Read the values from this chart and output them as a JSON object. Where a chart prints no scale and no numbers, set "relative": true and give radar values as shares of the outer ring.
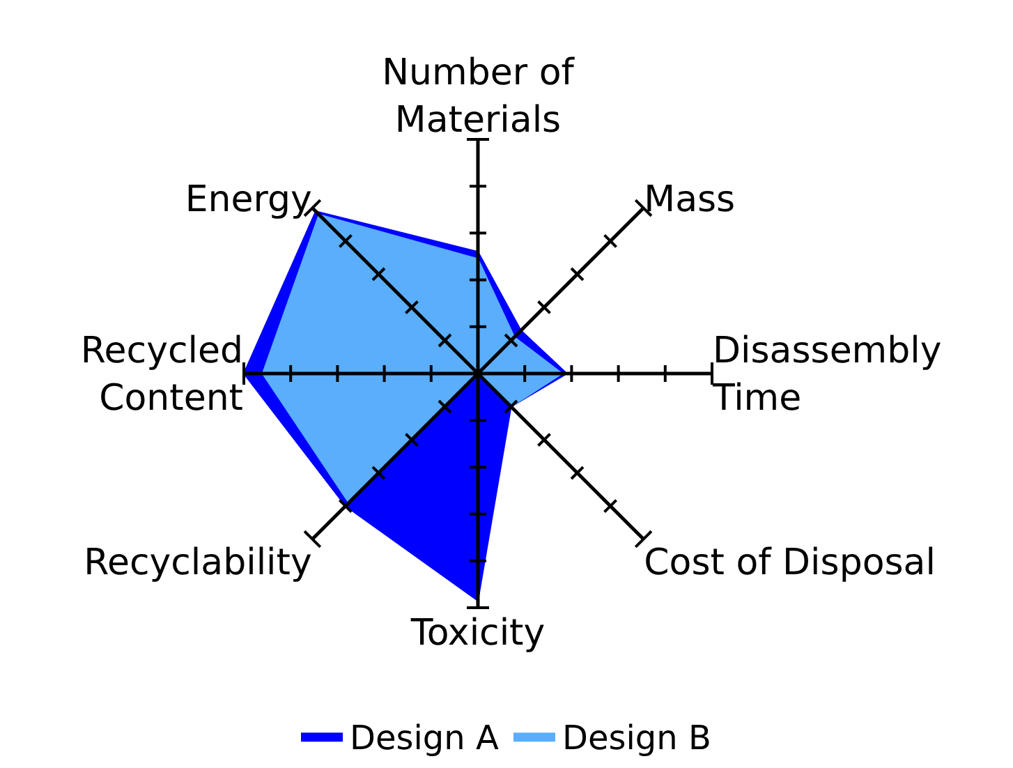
{
  "chart_data": {
    "type": "radar",
    "relative": true,
    "legend": "bottom",
    "grid": true,
    "categories": [
      "Number of\nMaterials",
      "Mass",
      "Disassembly\nTime",
      "Cost of Disposal",
      "Toxicity",
      "Recyclability",
      "Recycled\nContent",
      "Energy"
    ],
    "series": [
      {
        "name": "Design A",
        "color": "#0000ff",
        "values": [
          0.52,
          0.26,
          0.38,
          0.2,
          0.97,
          0.8,
          1.0,
          0.98
        ]
      },
      {
        "name": "Design B",
        "color": "#5aaefc",
        "values": [
          0.49,
          0.22,
          0.36,
          0.2,
          0.0,
          0.78,
          0.92,
          0.96
        ]
      }
    ]
  }
}
